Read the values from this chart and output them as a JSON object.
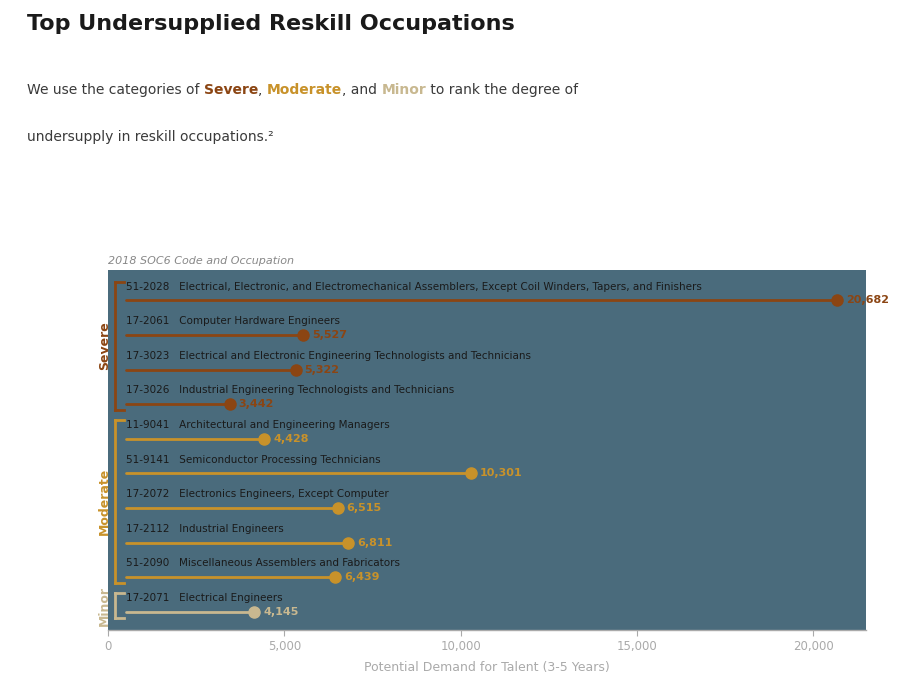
{
  "title": "Top Undersupplied Reskill Occupations",
  "subtitle_parts": [
    {
      "text": "We use the categories of ",
      "color": "#3a3a3a",
      "bold": false
    },
    {
      "text": "Severe",
      "color": "#8B4513",
      "bold": true
    },
    {
      "text": ", ",
      "color": "#3a3a3a",
      "bold": false
    },
    {
      "text": "Moderate",
      "color": "#C8922A",
      "bold": true
    },
    {
      "text": ", and ",
      "color": "#3a3a3a",
      "bold": false
    },
    {
      "text": "Minor",
      "color": "#C8B890",
      "bold": true
    },
    {
      "text": " to rank the degree of",
      "color": "#3a3a3a",
      "bold": false
    }
  ],
  "subtitle_line2": "undersupply in reskill occupations.²",
  "soc_label": "2018 SOC6 Code and Occupation",
  "xlabel": "Potential Demand for Talent (3-5 Years)",
  "fig_bg": "#ffffff",
  "chart_bg": "#4a6b7c",
  "occupations": [
    {
      "code": "51-2028",
      "name": "Electrical, Electronic, and Electromechanical Assemblers, Except Coil Winders, Tapers, and Finishers",
      "value": 20682,
      "category": "Severe"
    },
    {
      "code": "17-2061",
      "name": "Computer Hardware Engineers",
      "value": 5527,
      "category": "Severe"
    },
    {
      "code": "17-3023",
      "name": "Electrical and Electronic Engineering Technologists and Technicians",
      "value": 5322,
      "category": "Severe"
    },
    {
      "code": "17-3026",
      "name": "Industrial Engineering Technologists and Technicians",
      "value": 3442,
      "category": "Severe"
    },
    {
      "code": "11-9041",
      "name": "Architectural and Engineering Managers",
      "value": 4428,
      "category": "Moderate"
    },
    {
      "code": "51-9141",
      "name": "Semiconductor Processing Technicians",
      "value": 10301,
      "category": "Moderate"
    },
    {
      "code": "17-2072",
      "name": "Electronics Engineers, Except Computer",
      "value": 6515,
      "category": "Moderate"
    },
    {
      "code": "17-2112",
      "name": "Industrial Engineers",
      "value": 6811,
      "category": "Moderate"
    },
    {
      "code": "51-2090",
      "name": "Miscellaneous Assemblers and Fabricators",
      "value": 6439,
      "category": "Moderate"
    },
    {
      "code": "17-2071",
      "name": "Electrical Engineers",
      "value": 4145,
      "category": "Minor"
    }
  ],
  "category_colors": {
    "Severe": "#8B4513",
    "Moderate": "#C8922A",
    "Minor": "#C8B890"
  },
  "xlim": [
    0,
    21500
  ],
  "xticks": [
    0,
    5000,
    10000,
    15000,
    20000
  ],
  "xtick_labels": [
    "0",
    "5,000",
    "10,000",
    "15,000",
    "20,000"
  ],
  "value_format": "{:,}"
}
